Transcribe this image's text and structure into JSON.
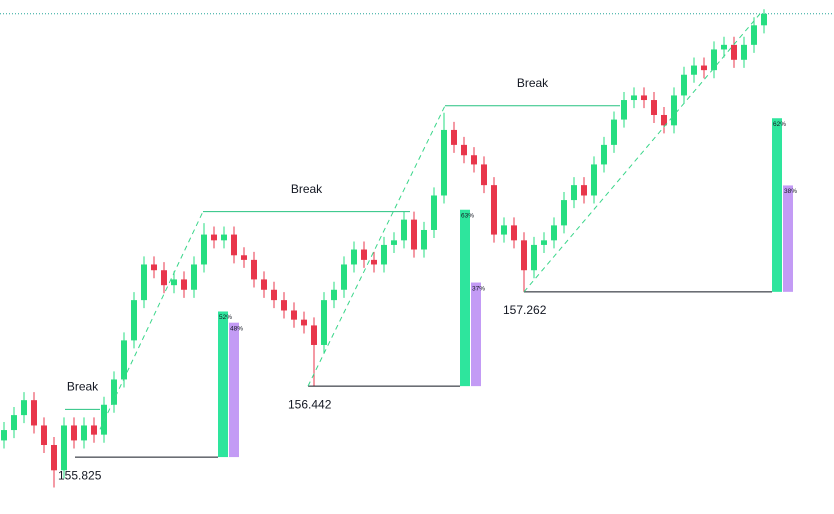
{
  "chart_data": {
    "type": "candlestick",
    "ylim": [
      155.33,
      159.8
    ],
    "up_color": "#26de81",
    "down_color": "#e8364b",
    "bull_color": "#2ee59d",
    "bear_color": "#c39bf5",
    "candles": {
      "open": [
        155.97,
        156.06,
        156.19,
        156.32,
        156.1,
        155.93,
        155.71,
        156.1,
        155.97,
        156.1,
        156.02,
        156.28,
        156.5,
        156.84,
        157.19,
        157.5,
        157.45,
        157.32,
        157.37,
        157.28,
        157.5,
        157.76,
        157.71,
        157.76,
        157.58,
        157.54,
        157.37,
        157.28,
        157.19,
        157.1,
        157.02,
        156.97,
        156.8,
        157.19,
        157.28,
        157.5,
        157.63,
        157.54,
        157.5,
        157.67,
        157.71,
        157.89,
        157.63,
        157.8,
        158.1,
        158.67,
        158.54,
        158.45,
        158.37,
        158.19,
        157.76,
        157.84,
        157.71,
        157.45,
        157.67,
        157.71,
        157.84,
        158.06,
        158.19,
        158.1,
        158.37,
        158.54,
        158.76,
        158.93,
        158.97,
        158.93,
        158.8,
        158.71,
        158.97,
        159.15,
        159.23,
        159.19,
        159.37,
        159.41,
        159.28,
        159.41,
        159.58
      ],
      "high": [
        156.13,
        156.26,
        156.39,
        156.39,
        156.17,
        156.0,
        156.17,
        156.17,
        156.17,
        156.17,
        156.35,
        156.57,
        156.91,
        157.26,
        157.57,
        157.57,
        157.52,
        157.44,
        157.44,
        157.57,
        157.86,
        157.83,
        157.83,
        157.83,
        157.65,
        157.61,
        157.44,
        157.35,
        157.26,
        157.17,
        157.09,
        157.04,
        157.26,
        157.35,
        157.57,
        157.7,
        157.7,
        157.61,
        157.74,
        157.78,
        157.96,
        157.96,
        157.87,
        158.17,
        158.82,
        158.74,
        158.61,
        158.52,
        158.44,
        158.26,
        157.91,
        157.91,
        157.78,
        157.74,
        157.78,
        157.91,
        158.13,
        158.26,
        158.26,
        158.44,
        158.61,
        158.83,
        159.0,
        159.04,
        159.04,
        159.0,
        158.87,
        159.04,
        159.22,
        159.3,
        159.3,
        159.44,
        159.48,
        159.48,
        159.48,
        159.65,
        159.72
      ],
      "low": [
        155.9,
        155.99,
        156.12,
        156.03,
        155.86,
        155.56,
        155.64,
        155.9,
        155.9,
        155.95,
        155.95,
        156.21,
        156.43,
        156.77,
        157.12,
        157.38,
        157.25,
        157.25,
        157.21,
        157.21,
        157.43,
        157.64,
        157.64,
        157.51,
        157.47,
        157.3,
        157.21,
        157.12,
        157.03,
        156.95,
        156.9,
        156.44,
        156.73,
        157.12,
        157.21,
        157.43,
        157.47,
        157.43,
        157.43,
        157.6,
        157.64,
        157.56,
        157.56,
        157.73,
        158.03,
        158.47,
        158.38,
        158.3,
        158.12,
        157.69,
        157.69,
        157.64,
        157.26,
        157.38,
        157.6,
        157.64,
        157.77,
        157.99,
        158.03,
        158.03,
        158.3,
        158.47,
        158.69,
        158.86,
        158.86,
        158.73,
        158.64,
        158.64,
        158.9,
        159.08,
        159.12,
        159.12,
        159.3,
        159.21,
        159.21,
        159.34,
        159.51
      ],
      "close": [
        156.06,
        156.19,
        156.32,
        156.1,
        155.93,
        155.71,
        156.1,
        155.97,
        156.1,
        156.02,
        156.28,
        156.5,
        156.84,
        157.19,
        157.5,
        157.45,
        157.32,
        157.37,
        157.28,
        157.5,
        157.76,
        157.71,
        157.76,
        157.58,
        157.54,
        157.37,
        157.28,
        157.19,
        157.1,
        157.02,
        156.97,
        156.8,
        157.19,
        157.28,
        157.5,
        157.63,
        157.54,
        157.5,
        157.67,
        157.71,
        157.89,
        157.63,
        157.8,
        158.1,
        158.67,
        158.54,
        158.45,
        158.37,
        158.19,
        157.76,
        157.84,
        157.71,
        157.45,
        157.67,
        157.71,
        157.84,
        158.06,
        158.19,
        158.1,
        158.37,
        158.54,
        158.76,
        158.93,
        158.97,
        158.93,
        158.8,
        158.71,
        158.97,
        159.15,
        159.23,
        159.19,
        159.37,
        159.41,
        159.28,
        159.41,
        159.58,
        159.68
      ]
    },
    "breaks": [
      {
        "label": "Break",
        "level": 156.24,
        "low": 155.825,
        "bull": 52,
        "bull_label": "52%",
        "bear": 48,
        "bear_label": "48%"
      },
      {
        "label": "Break",
        "level": 157.96,
        "low": 156.442,
        "bull": 63,
        "bull_label": "63%",
        "bear": 37,
        "bear_label": "37%"
      },
      {
        "label": "Break",
        "level": 158.88,
        "low": 157.262,
        "bull": 62,
        "bull_label": "62%",
        "bear": 38,
        "bear_label": "38%"
      }
    ]
  }
}
